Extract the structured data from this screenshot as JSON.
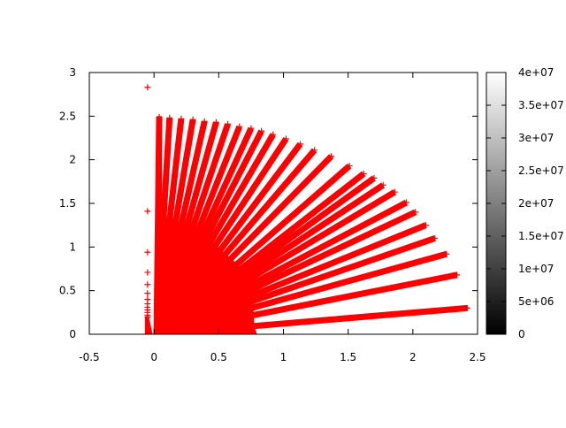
{
  "chart_data": {
    "type": "scatter",
    "title": "",
    "xlabel": "",
    "ylabel": "",
    "xlim": [
      -0.5,
      2.5
    ],
    "ylim": [
      0,
      3
    ],
    "grid": false,
    "marker": "+",
    "series_color": "#ff0000",
    "x_ticks": [
      "-0.5",
      "0",
      "0.5",
      "1",
      "1.5",
      "2",
      "2.5"
    ],
    "y_ticks": [
      "0",
      "0.5",
      "1",
      "1.5",
      "2",
      "2.5",
      "3"
    ],
    "ray_endpoints": [
      [
        0.04,
        2.49
      ],
      [
        0.12,
        2.48
      ],
      [
        0.21,
        2.47
      ],
      [
        0.3,
        2.46
      ],
      [
        0.39,
        2.44
      ],
      [
        0.48,
        2.43
      ],
      [
        0.57,
        2.41
      ],
      [
        0.66,
        2.38
      ],
      [
        0.75,
        2.36
      ],
      [
        0.83,
        2.33
      ],
      [
        0.92,
        2.29
      ],
      [
        1.02,
        2.24
      ],
      [
        1.13,
        2.18
      ],
      [
        1.24,
        2.11
      ],
      [
        1.37,
        2.04
      ],
      [
        1.51,
        1.93
      ],
      [
        1.62,
        1.84
      ],
      [
        1.7,
        1.79
      ],
      [
        1.77,
        1.71
      ],
      [
        1.86,
        1.63
      ],
      [
        1.95,
        1.51
      ],
      [
        2.02,
        1.4
      ],
      [
        2.1,
        1.25
      ],
      [
        2.17,
        1.1
      ],
      [
        2.26,
        0.92
      ],
      [
        2.34,
        0.68
      ],
      [
        2.42,
        0.3
      ]
    ],
    "isolated_points": [
      [
        -0.05,
        2.83
      ],
      [
        -0.05,
        1.41
      ],
      [
        -0.05,
        0.94
      ],
      [
        -0.05,
        0.71
      ],
      [
        -0.05,
        0.57
      ],
      [
        -0.05,
        0.47
      ],
      [
        -0.05,
        0.4
      ],
      [
        -0.05,
        0.35
      ],
      [
        -0.05,
        0.31
      ],
      [
        -0.05,
        0.28
      ],
      [
        -0.05,
        0.25
      ],
      [
        -0.05,
        0.22
      ],
      [
        -0.05,
        0.2
      ]
    ],
    "colorbar": {
      "range": [
        0,
        40000000
      ],
      "ticks": [
        "0",
        "5e+06",
        "1e+07",
        "1.5e+07",
        "2e+07",
        "2.5e+07",
        "3e+07",
        "3.5e+07",
        "4e+07"
      ],
      "gradient": [
        "#000000",
        "#ffffff"
      ]
    }
  }
}
